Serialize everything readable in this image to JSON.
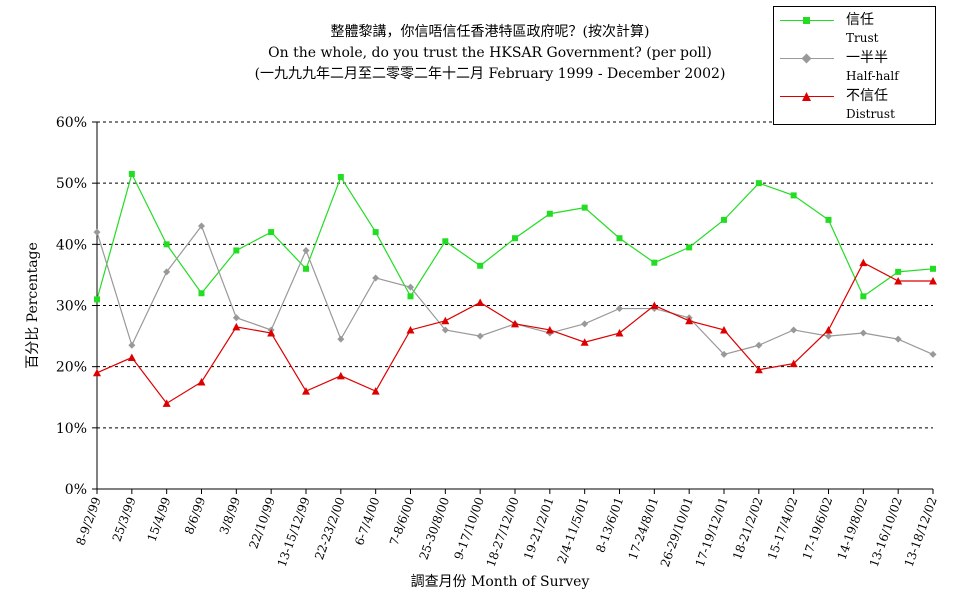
{
  "chart_data": {
    "type": "line",
    "title": "整體黎講，你信唔信任香港特區政府呢？(按次計算)",
    "subtitle": "On the whole, do you trust the HKSAR Government? (per poll)",
    "subtitle2": "(一九九九年二月至二零零二年十二月 February 1999 - December 2002)",
    "xlabel": "調查月份 Month of Survey",
    "ylabel": "百分比 Percentage",
    "ylim": [
      0,
      60
    ],
    "yticks": [
      "0%",
      "10%",
      "20%",
      "30%",
      "40%",
      "50%",
      "60%"
    ],
    "grid": "horizontal-dashed",
    "legend_position": "top-right",
    "categories": [
      "8-9/2/99",
      "25/3/99",
      "15/4/99",
      "8/6/99",
      "3/8/99",
      "22/10/99",
      "13-15/12/99",
      "22-23/2/00",
      "6-7/4/00",
      "7-8/6/00",
      "25-30/8/00",
      "9-17/10/00",
      "18-27/12/00",
      "19-21/2/01",
      "2/4-11/5/01",
      "8-13/6/01",
      "17-24/8/01",
      "26-29/10/01",
      "17-19/12/01",
      "18-21/2/02",
      "15-17/4/02",
      "17-19/6/02",
      "14-19/8/02",
      "13-16/10/02",
      "13-18/12/02"
    ],
    "series": [
      {
        "name": "信任",
        "name_en": "Trust",
        "color": "#22dd22",
        "marker": "square",
        "values": [
          31,
          51.5,
          40,
          32,
          39,
          42,
          36,
          51,
          42,
          31.5,
          40.5,
          36.5,
          41,
          45,
          46,
          41,
          37,
          39.5,
          44,
          50,
          48,
          44,
          31.5,
          35.5,
          36
        ]
      },
      {
        "name": "一半半",
        "name_en": "Half-half",
        "color": "#999999",
        "marker": "diamond",
        "values": [
          42,
          23.5,
          35.5,
          43,
          28,
          26,
          39,
          24.5,
          34.5,
          33,
          26,
          25,
          27,
          25.5,
          27,
          29.5,
          29.5,
          28,
          22,
          23.5,
          26,
          25,
          25.5,
          24.5,
          22
        ]
      },
      {
        "name": "不信任",
        "name_en": "Distrust",
        "color": "#dd0000",
        "marker": "triangle",
        "values": [
          19,
          21.5,
          14,
          17.5,
          26.5,
          25.5,
          16,
          18.5,
          16,
          26,
          27.5,
          30.5,
          27,
          26,
          24,
          25.5,
          30,
          27.5,
          26,
          19.5,
          20.5,
          26,
          37,
          34,
          34
        ]
      }
    ]
  }
}
